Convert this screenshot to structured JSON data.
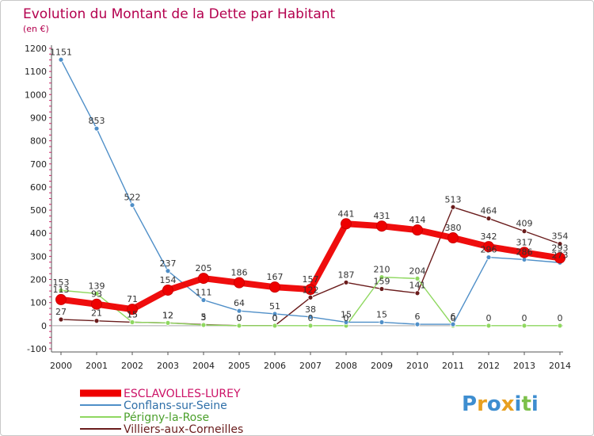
{
  "chart_data": {
    "type": "line",
    "title": "Evolution du Montant de la Dette par Habitant",
    "unit_label": "(en €)",
    "xlabel": "",
    "ylabel": "",
    "categories": [
      "2000",
      "2001",
      "2002",
      "2003",
      "2004",
      "2005",
      "2006",
      "2007",
      "2008",
      "2009",
      "2010",
      "2011",
      "2012",
      "2013",
      "2014"
    ],
    "ylim": [
      -100,
      1200
    ],
    "yticks": [
      -100,
      0,
      100,
      200,
      300,
      400,
      500,
      600,
      700,
      800,
      900,
      1000,
      1100,
      1200
    ],
    "grid": false,
    "legend_position": "bottom-left",
    "series": [
      {
        "name": "ESCLAVOLLES-LUREY",
        "color": "#ee0000",
        "values": [
          113,
          93,
          71,
          154,
          205,
          186,
          167,
          157,
          441,
          431,
          414,
          380,
          342,
          317,
          293
        ],
        "labels": [
          "113",
          "93",
          "71",
          "154",
          "205",
          "186",
          "167",
          "157",
          "441",
          "431",
          "414",
          "380",
          "342",
          "317",
          "293"
        ]
      },
      {
        "name": "Conflans-sur-Seine",
        "color": "#4f8fc8",
        "values": [
          1151,
          853,
          522,
          237,
          111,
          64,
          51,
          38,
          15,
          15,
          6,
          6,
          296,
          286,
          273
        ],
        "labels": [
          "1151",
          "853",
          "522",
          "237",
          "111",
          "64",
          "51",
          "38",
          "15",
          "15",
          "6",
          "6",
          "296",
          "286",
          "273"
        ]
      },
      {
        "name": "Périgny-la-Rose",
        "color": "#8fd860",
        "values": [
          153,
          139,
          15,
          12,
          3,
          0,
          0,
          0,
          0,
          210,
          204,
          0,
          0,
          0,
          0
        ],
        "labels": [
          "153",
          "139",
          "15",
          "12",
          "3",
          "0",
          "0",
          "0",
          "0",
          "210",
          "204",
          "0",
          "0",
          "0",
          "0"
        ]
      },
      {
        "name": "Villiers-aux-Corneilles",
        "color": "#6a1c1c",
        "values": [
          27,
          21,
          15,
          12,
          5,
          0,
          0,
          122,
          187,
          159,
          141,
          513,
          464,
          409,
          354
        ],
        "labels": [
          "27",
          "21",
          "15",
          "12",
          "5",
          "0",
          "0",
          "122",
          "187",
          "159",
          "141",
          "513",
          "464",
          "409",
          "354"
        ]
      }
    ]
  },
  "brand": {
    "letters": [
      "P",
      "r",
      "o",
      "x",
      "i",
      "t",
      "i"
    ],
    "colors": [
      "#3e8ed0",
      "#e8a020",
      "#3e8ed0",
      "#e8a020",
      "#3e8ed0",
      "#7cc04a",
      "#3e8ed0"
    ]
  }
}
